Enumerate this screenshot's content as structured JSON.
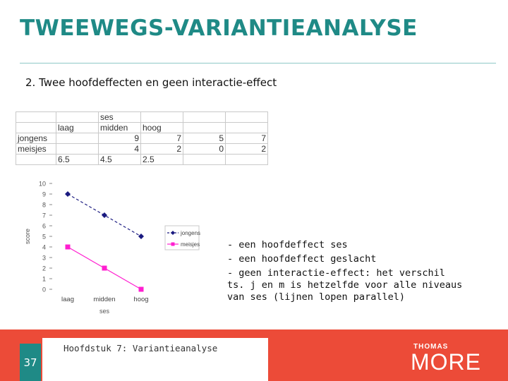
{
  "slide": {
    "title": "TWEEWEGS-VARIANTIEANALYSE",
    "subtitle": "2. Twee hoofdeffecten en geen interactie-effect",
    "page_number": "37",
    "footer_text": "Hoofdstuk 7: Variantieanalyse",
    "accent_color": "#ec4b38",
    "title_color": "#1f8a86",
    "logo": {
      "top": "THOMAS",
      "bottom": "MORE"
    }
  },
  "table": {
    "rows": [
      [
        "",
        "",
        "ses",
        "",
        "",
        ""
      ],
      [
        "",
        "laag",
        "midden",
        "hoog",
        "",
        ""
      ],
      [
        "jongens",
        "9",
        "7",
        "5",
        "7",
        ""
      ],
      [
        "meisjes",
        "4",
        "2",
        "0",
        "2",
        ""
      ],
      [
        "",
        "6.5",
        "4.5",
        "2.5",
        "",
        ""
      ]
    ],
    "rows_fixed": [
      [
        "",
        "",
        "ses",
        "",
        "",
        ""
      ],
      [
        "",
        "laag",
        "midden",
        "hoog",
        "",
        ""
      ],
      [
        "jongens",
        "",
        "9",
        "7",
        "5",
        "7"
      ],
      [
        "meisjes",
        "",
        "4",
        "2",
        "0",
        "2"
      ],
      [
        "",
        "6.5",
        "4.5",
        "2.5",
        "",
        ""
      ]
    ]
  },
  "chart_data": {
    "type": "line",
    "categories": [
      "laag",
      "midden",
      "hoog"
    ],
    "series": [
      {
        "name": "jongens",
        "values": [
          9,
          7,
          5
        ],
        "color": "#1a1a80",
        "marker": "diamond",
        "dashed": true
      },
      {
        "name": "meisjes",
        "values": [
          4,
          2,
          0
        ],
        "color": "#ff1fd0",
        "marker": "square",
        "dashed": false
      }
    ],
    "ylim": [
      0,
      10
    ],
    "yticks": [
      0,
      1,
      2,
      3,
      4,
      5,
      6,
      7,
      8,
      9,
      10
    ],
    "xlabel": "ses",
    "ylabel": "score",
    "legend_position": "right"
  },
  "notes": [
    "- een hoofdeffect ses",
    "- een hoofdeffect geslacht",
    "- geen interactie-effect: het verschil ts. j en m is hetzelfde voor alle niveaus van ses  (lijnen lopen parallel)"
  ]
}
